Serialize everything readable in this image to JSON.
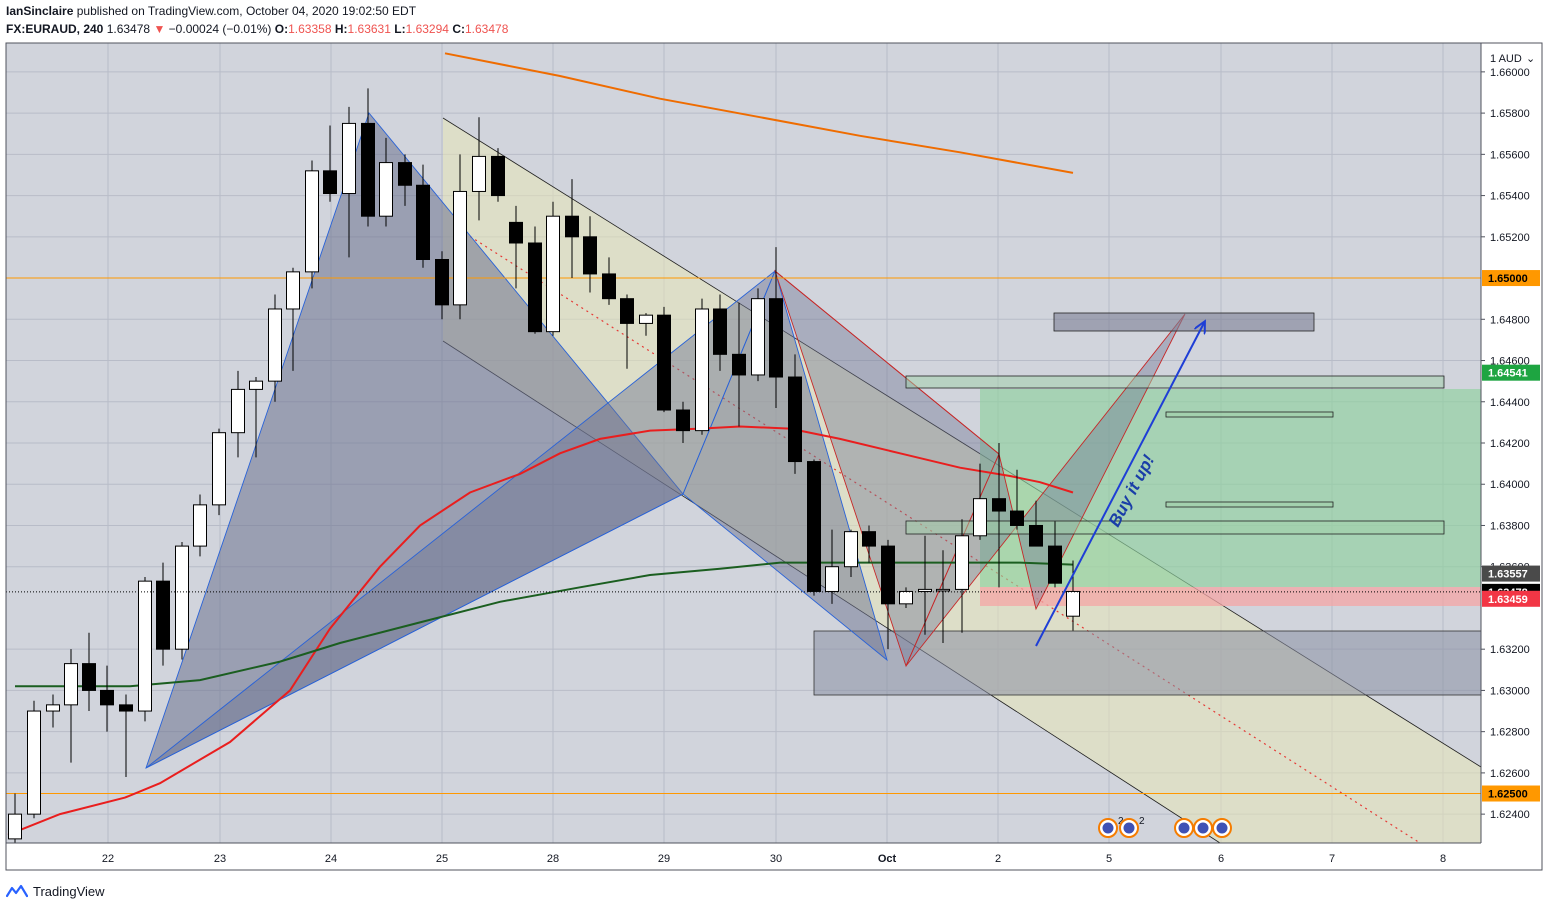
{
  "header": {
    "author": "IanSinclaire",
    "published": "published on TradingView.com, October 04, 2020 19:02:50 EDT",
    "symbol": "FX:EURAUD, 240",
    "last": "1.63478",
    "change": "−0.00024 (−0.01%)",
    "o_label": "O:",
    "o_value": "1.63358",
    "h_label": "H:",
    "h_value": "1.63631",
    "l_label": "L:",
    "l_value": "1.63294",
    "c_label": "C:",
    "c_value": "1.63478"
  },
  "footer": {
    "brand": "TradingView"
  },
  "colors": {
    "background": "#d1d4dc",
    "grid": "#b8bcc8",
    "ma_fast": "#e91e1e",
    "ma_slow": "#1b5e20",
    "ma_long": "#ef6c00",
    "level": "#ff9800",
    "arrow": "#1e3ed6",
    "buy_text": "#1a3ea8",
    "green_tag": "#1ea541",
    "red_tag": "#f23645",
    "gray_tag": "#4a4a4a",
    "black_tag": "#000000"
  },
  "chart_data": {
    "type": "candlestick",
    "symbol": "FX:EURAUD",
    "timeframe": "240",
    "ylim": [
      1.6226,
      1.6614
    ],
    "y_unit_label": "1 AUD",
    "y_ticks": [
      "1.66000",
      "1.65800",
      "1.65600",
      "1.65400",
      "1.65200",
      "1.64800",
      "1.64600",
      "1.64400",
      "1.64200",
      "1.64000",
      "1.63800",
      "1.63600",
      "1.63200",
      "1.63000",
      "1.62800",
      "1.62600",
      "1.62400"
    ],
    "x_ticks": [
      {
        "label": "22",
        "x": 108
      },
      {
        "label": "23",
        "x": 220
      },
      {
        "label": "24",
        "x": 331
      },
      {
        "label": "25",
        "x": 442
      },
      {
        "label": "28",
        "x": 553
      },
      {
        "label": "29",
        "x": 664
      },
      {
        "label": "30",
        "x": 776
      },
      {
        "label": "Oct",
        "x": 887
      },
      {
        "label": "2",
        "x": 998
      },
      {
        "label": "5",
        "x": 1109
      },
      {
        "label": "6",
        "x": 1221
      },
      {
        "label": "7",
        "x": 1332
      },
      {
        "label": "8",
        "x": 1443
      }
    ],
    "candles": [
      {
        "x": 15,
        "o": 1.6228,
        "h": 1.625,
        "l": 1.6226,
        "c": 1.624
      },
      {
        "x": 34,
        "o": 1.624,
        "h": 1.6295,
        "l": 1.6238,
        "c": 1.629
      },
      {
        "x": 53,
        "o": 1.629,
        "h": 1.6298,
        "l": 1.6282,
        "c": 1.6293
      },
      {
        "x": 71,
        "o": 1.6293,
        "h": 1.632,
        "l": 1.6265,
        "c": 1.6313
      },
      {
        "x": 89,
        "o": 1.6313,
        "h": 1.6328,
        "l": 1.629,
        "c": 1.63
      },
      {
        "x": 107,
        "o": 1.63,
        "h": 1.6312,
        "l": 1.628,
        "c": 1.6293
      },
      {
        "x": 126,
        "o": 1.6293,
        "h": 1.6298,
        "l": 1.6258,
        "c": 1.629
      },
      {
        "x": 145,
        "o": 1.629,
        "h": 1.6355,
        "l": 1.6285,
        "c": 1.6353
      },
      {
        "x": 163,
        "o": 1.6353,
        "h": 1.6362,
        "l": 1.6312,
        "c": 1.632
      },
      {
        "x": 182,
        "o": 1.632,
        "h": 1.6372,
        "l": 1.6315,
        "c": 1.637
      },
      {
        "x": 200,
        "o": 1.637,
        "h": 1.6395,
        "l": 1.6365,
        "c": 1.639
      },
      {
        "x": 219,
        "o": 1.639,
        "h": 1.6427,
        "l": 1.6385,
        "c": 1.6425
      },
      {
        "x": 238,
        "o": 1.6425,
        "h": 1.6455,
        "l": 1.6413,
        "c": 1.6446
      },
      {
        "x": 256,
        "o": 1.6446,
        "h": 1.6452,
        "l": 1.6413,
        "c": 1.645
      },
      {
        "x": 275,
        "o": 1.645,
        "h": 1.6492,
        "l": 1.644,
        "c": 1.6485
      },
      {
        "x": 293,
        "o": 1.6485,
        "h": 1.6505,
        "l": 1.6455,
        "c": 1.6503
      },
      {
        "x": 312,
        "o": 1.6503,
        "h": 1.6557,
        "l": 1.6495,
        "c": 1.6552
      },
      {
        "x": 330,
        "o": 1.6552,
        "h": 1.6574,
        "l": 1.6537,
        "c": 1.6541
      },
      {
        "x": 349,
        "o": 1.6541,
        "h": 1.6583,
        "l": 1.651,
        "c": 1.6575
      },
      {
        "x": 368,
        "o": 1.6575,
        "h": 1.6592,
        "l": 1.6525,
        "c": 1.653
      },
      {
        "x": 386,
        "o": 1.653,
        "h": 1.6568,
        "l": 1.6525,
        "c": 1.6556
      },
      {
        "x": 405,
        "o": 1.6556,
        "h": 1.656,
        "l": 1.6535,
        "c": 1.6545
      },
      {
        "x": 423,
        "o": 1.6545,
        "h": 1.6555,
        "l": 1.6505,
        "c": 1.6509
      },
      {
        "x": 442,
        "o": 1.6509,
        "h": 1.6513,
        "l": 1.648,
        "c": 1.6487
      },
      {
        "x": 460,
        "o": 1.6487,
        "h": 1.656,
        "l": 1.648,
        "c": 1.6542
      },
      {
        "x": 479,
        "o": 1.6542,
        "h": 1.6578,
        "l": 1.6528,
        "c": 1.6559
      },
      {
        "x": 498,
        "o": 1.6559,
        "h": 1.6563,
        "l": 1.6537,
        "c": 1.654
      },
      {
        "x": 516,
        "o": 1.6527,
        "h": 1.6535,
        "l": 1.6495,
        "c": 1.6517
      },
      {
        "x": 535,
        "o": 1.6517,
        "h": 1.6525,
        "l": 1.6473,
        "c": 1.6474
      },
      {
        "x": 553,
        "o": 1.6474,
        "h": 1.6537,
        "l": 1.6472,
        "c": 1.653
      },
      {
        "x": 572,
        "o": 1.653,
        "h": 1.6548,
        "l": 1.65,
        "c": 1.652
      },
      {
        "x": 590,
        "o": 1.652,
        "h": 1.653,
        "l": 1.6493,
        "c": 1.6502
      },
      {
        "x": 609,
        "o": 1.6502,
        "h": 1.651,
        "l": 1.6487,
        "c": 1.649
      },
      {
        "x": 627,
        "o": 1.649,
        "h": 1.6492,
        "l": 1.6456,
        "c": 1.6478
      },
      {
        "x": 646,
        "o": 1.6478,
        "h": 1.6483,
        "l": 1.6472,
        "c": 1.6482
      },
      {
        "x": 664,
        "o": 1.6482,
        "h": 1.6486,
        "l": 1.6435,
        "c": 1.6436
      },
      {
        "x": 683,
        "o": 1.6436,
        "h": 1.644,
        "l": 1.642,
        "c": 1.6426
      },
      {
        "x": 702,
        "o": 1.6426,
        "h": 1.649,
        "l": 1.6424,
        "c": 1.6485
      },
      {
        "x": 720,
        "o": 1.6485,
        "h": 1.6492,
        "l": 1.6455,
        "c": 1.6463
      },
      {
        "x": 739,
        "o": 1.6463,
        "h": 1.6488,
        "l": 1.6428,
        "c": 1.6453
      },
      {
        "x": 758,
        "o": 1.6453,
        "h": 1.6495,
        "l": 1.645,
        "c": 1.649
      },
      {
        "x": 776,
        "o": 1.649,
        "h": 1.6515,
        "l": 1.6437,
        "c": 1.6452
      },
      {
        "x": 795,
        "o": 1.6452,
        "h": 1.6463,
        "l": 1.6405,
        "c": 1.6411
      },
      {
        "x": 814,
        "o": 1.6411,
        "h": 1.6412,
        "l": 1.6346,
        "c": 1.6348
      },
      {
        "x": 832,
        "o": 1.6348,
        "h": 1.6378,
        "l": 1.6342,
        "c": 1.636
      },
      {
        "x": 851,
        "o": 1.636,
        "h": 1.6378,
        "l": 1.6355,
        "c": 1.6377
      },
      {
        "x": 869,
        "o": 1.6377,
        "h": 1.638,
        "l": 1.6362,
        "c": 1.637
      },
      {
        "x": 888,
        "o": 1.637,
        "h": 1.6373,
        "l": 1.632,
        "c": 1.6342
      },
      {
        "x": 906,
        "o": 1.6342,
        "h": 1.635,
        "l": 1.634,
        "c": 1.6348
      },
      {
        "x": 925,
        "o": 1.6348,
        "h": 1.6375,
        "l": 1.6327,
        "c": 1.6349
      },
      {
        "x": 943,
        "o": 1.6349,
        "h": 1.6368,
        "l": 1.6323,
        "c": 1.6349
      },
      {
        "x": 962,
        "o": 1.6349,
        "h": 1.6383,
        "l": 1.6328,
        "c": 1.6375
      },
      {
        "x": 980,
        "o": 1.6375,
        "h": 1.641,
        "l": 1.6373,
        "c": 1.6393
      },
      {
        "x": 999,
        "o": 1.6393,
        "h": 1.642,
        "l": 1.635,
        "c": 1.6387
      },
      {
        "x": 1017,
        "o": 1.6387,
        "h": 1.6407,
        "l": 1.6378,
        "c": 1.638
      },
      {
        "x": 1036,
        "o": 1.638,
        "h": 1.6392,
        "l": 1.637,
        "c": 1.637
      },
      {
        "x": 1055,
        "o": 1.637,
        "h": 1.6382,
        "l": 1.635,
        "c": 1.6352
      },
      {
        "x": 1073,
        "o": 1.6336,
        "h": 1.6363,
        "l": 1.6329,
        "c": 1.6348
      }
    ],
    "moving_averages": [
      {
        "points": [
          [
            8,
            1.623
          ],
          [
            60,
            1.624
          ],
          [
            125,
            1.6248
          ],
          [
            160,
            1.6255
          ],
          [
            230,
            1.6275
          ],
          [
            290,
            1.63
          ],
          [
            330,
            1.633
          ],
          [
            380,
            1.636
          ],
          [
            420,
            1.638
          ],
          [
            470,
            1.6396
          ],
          [
            520,
            1.6405
          ],
          [
            560,
            1.6415
          ],
          [
            600,
            1.6422
          ],
          [
            650,
            1.6426
          ],
          [
            700,
            1.6427
          ],
          [
            740,
            1.6428
          ],
          [
            790,
            1.6427
          ],
          [
            840,
            1.6422
          ],
          [
            900,
            1.6415
          ],
          [
            960,
            1.6408
          ],
          [
            1010,
            1.6404
          ],
          [
            1040,
            1.6401
          ],
          [
            1073,
            1.6396
          ]
        ]
      },
      {
        "points": [
          [
            15,
            1.6302
          ],
          [
            130,
            1.6302
          ],
          [
            200,
            1.6305
          ],
          [
            280,
            1.6314
          ],
          [
            340,
            1.6323
          ],
          [
            420,
            1.6333
          ],
          [
            500,
            1.6343
          ],
          [
            580,
            1.635
          ],
          [
            650,
            1.6356
          ],
          [
            720,
            1.6359
          ],
          [
            780,
            1.6362
          ],
          [
            840,
            1.6362
          ],
          [
            900,
            1.6362
          ],
          [
            960,
            1.6362
          ],
          [
            1020,
            1.6362
          ],
          [
            1073,
            1.6361
          ]
        ]
      },
      {
        "points": [
          [
            445,
            1.6609
          ],
          [
            560,
            1.6598
          ],
          [
            660,
            1.6587
          ],
          [
            760,
            1.6578
          ],
          [
            860,
            1.6569
          ],
          [
            960,
            1.6561
          ],
          [
            1073,
            1.6551
          ]
        ]
      }
    ],
    "levels": [
      1.65,
      1.625
    ],
    "price_tags": [
      {
        "text": "1.65000",
        "value": 1.65,
        "kind": "level"
      },
      {
        "text": "1.64541",
        "value": 1.64541,
        "kind": "green"
      },
      {
        "text": "1.63557",
        "value": 1.63557,
        "kind": "gray"
      },
      {
        "text": "1.63478",
        "value": 1.63478,
        "kind": "black"
      },
      {
        "text": "1.63459",
        "value": 1.63459,
        "kind": "red"
      },
      {
        "text": "1.62500",
        "value": 1.625,
        "kind": "level"
      }
    ],
    "annotations": {
      "buy_text": "Buy it up!"
    },
    "event_badges": [
      "2",
      "2"
    ]
  }
}
